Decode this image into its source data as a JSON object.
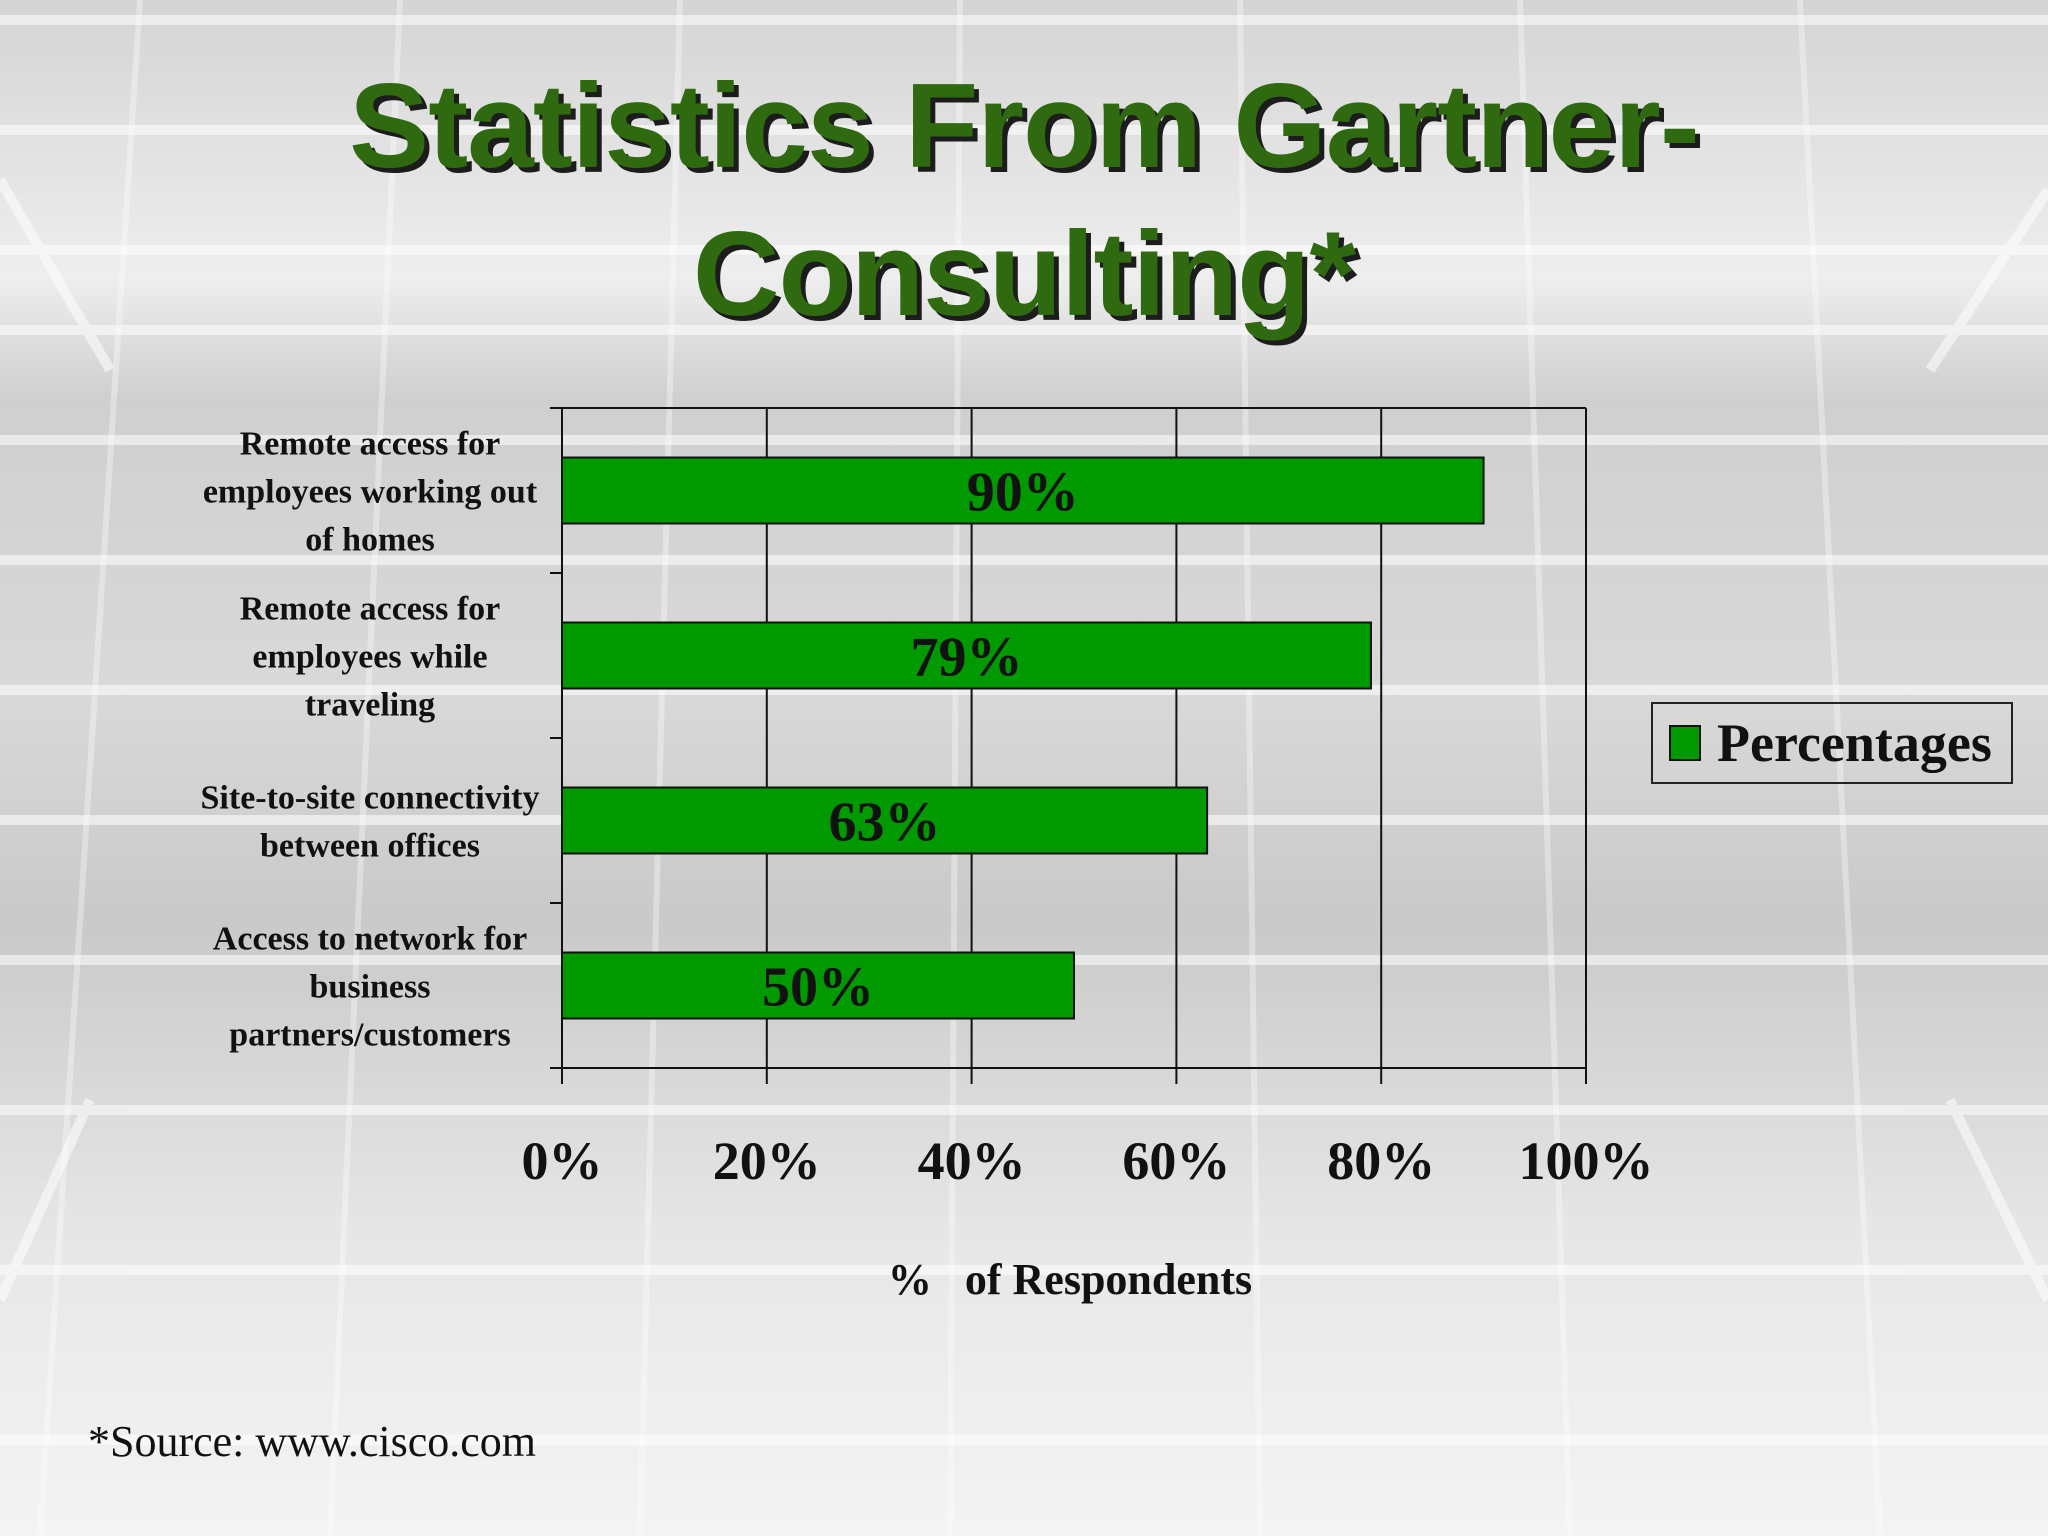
{
  "slide": {
    "title": "Statistics From Gartner-Consulting*",
    "source": "*Source: www.cisco.com"
  },
  "chart_data": {
    "type": "bar",
    "orientation": "horizontal",
    "categories": [
      "Remote access for employees working out of homes",
      "Remote access for employees while traveling",
      "Site-to-site connectivity between offices",
      "Access to network for business partners/customers"
    ],
    "series": [
      {
        "name": "Percentages",
        "values": [
          90,
          79,
          63,
          50
        ],
        "color": "#009900"
      }
    ],
    "data_labels": [
      "90%",
      "79%",
      "63%",
      "50%"
    ],
    "xlabel": "%   of Respondents",
    "ylabel": "",
    "xlim": [
      0,
      100
    ],
    "x_ticks": [
      "0%",
      "20%",
      "40%",
      "60%",
      "80%",
      "100%"
    ],
    "grid": "vertical",
    "legend": "right"
  }
}
